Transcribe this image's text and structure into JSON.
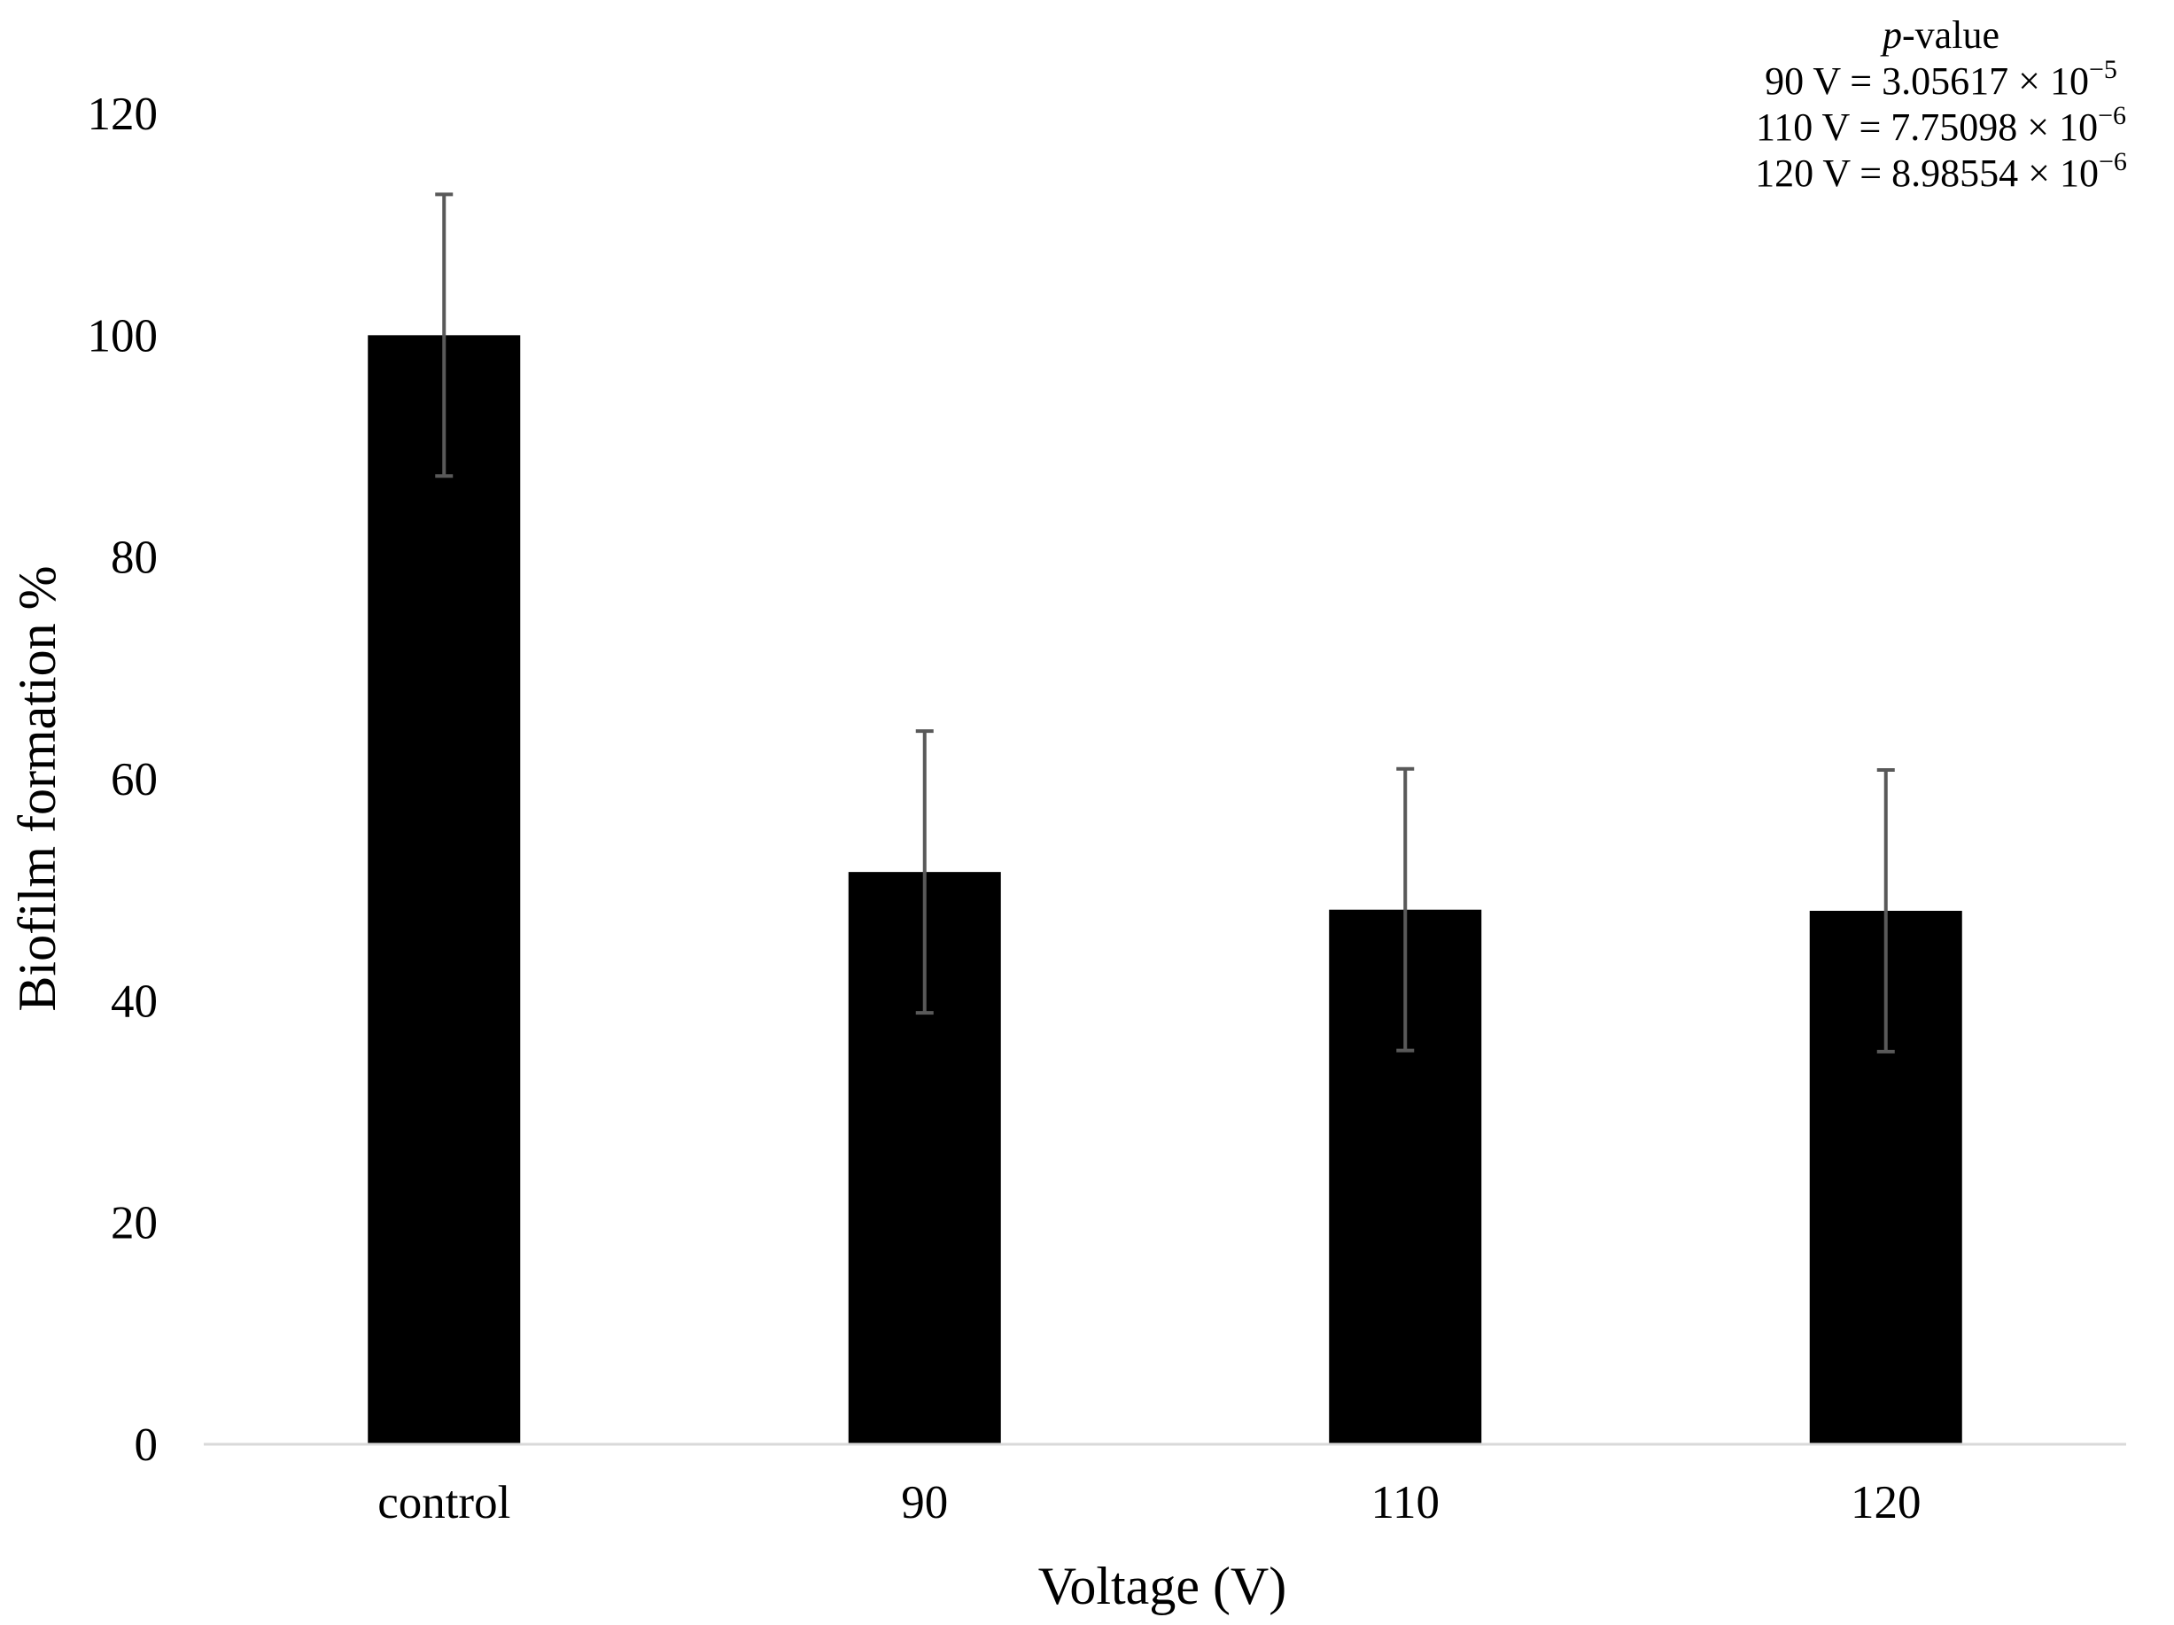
{
  "chart_data": {
    "type": "bar",
    "title": "",
    "xlabel": "Voltage (V)",
    "ylabel": "Biofilm formation %",
    "categories": [
      "control",
      "90",
      "110",
      "120"
    ],
    "values": [
      100,
      51.6,
      48.2,
      48.1
    ],
    "error_bars": [
      12.7,
      12.7,
      12.7,
      12.7
    ],
    "ylim": [
      0,
      120
    ],
    "yticks": [
      "0",
      "20",
      "40",
      "60",
      "80",
      "100",
      "120"
    ],
    "grid": false,
    "bar_color": "#000000",
    "error_bar_color": "#595959",
    "annotation": {
      "heading_italic": "p",
      "heading_rest": "-value",
      "lines": [
        {
          "label": "90 V = 3.05617 × 10",
          "exp": "−5"
        },
        {
          "label": "110 V = 7.75098 × 10",
          "exp": "−6"
        },
        {
          "label": "120 V = 8.98554 × 10",
          "exp": "−6"
        }
      ]
    }
  }
}
